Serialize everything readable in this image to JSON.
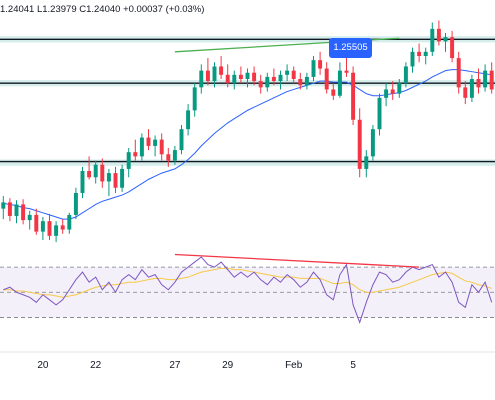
{
  "header": {
    "ohlc_text": "1.24041  L1.23979  C1.24040  +0.00037 (+0.03%)",
    "change_text": "+0.00037 (+0.03%)"
  },
  "callout": {
    "label": "1.25505"
  },
  "colors": {
    "up": "#089981",
    "down": "#f23645",
    "ma": "#2962ff",
    "rsi": "#7e57c2",
    "rsi_ma": "#f7c948",
    "level": "#131722",
    "zone": "#b2dfdb",
    "trendline_up": "#4caf50",
    "trendline_div": "#f23645"
  },
  "chart_data": [
    {
      "type": "candlestick",
      "x_ticks": [
        "20",
        "22",
        "27",
        "29",
        "Feb",
        "5"
      ],
      "candles": [
        [
          1.239,
          1.2402,
          1.238,
          1.2396
        ],
        [
          1.2396,
          1.24,
          1.2378,
          1.2383
        ],
        [
          1.2383,
          1.2398,
          1.2376,
          1.2394
        ],
        [
          1.2394,
          1.2399,
          1.2375,
          1.2379
        ],
        [
          1.2379,
          1.2388,
          1.237,
          1.2384
        ],
        [
          1.2384,
          1.239,
          1.2365,
          1.2368
        ],
        [
          1.2368,
          1.2382,
          1.236,
          1.2378
        ],
        [
          1.2378,
          1.2385,
          1.236,
          1.2364
        ],
        [
          1.2364,
          1.2378,
          1.2358,
          1.2374
        ],
        [
          1.2374,
          1.238,
          1.2366,
          1.237
        ],
        [
          1.237,
          1.2386,
          1.2366,
          1.2384
        ],
        [
          1.2384,
          1.241,
          1.238,
          1.2405
        ],
        [
          1.2405,
          1.243,
          1.24,
          1.2426
        ],
        [
          1.2426,
          1.244,
          1.2418,
          1.242
        ],
        [
          1.242,
          1.2436,
          1.2414,
          1.2432
        ],
        [
          1.2432,
          1.2438,
          1.241,
          1.2416
        ],
        [
          1.2416,
          1.2428,
          1.2402,
          1.2424
        ],
        [
          1.2424,
          1.243,
          1.2405,
          1.241
        ],
        [
          1.241,
          1.2432,
          1.2406,
          1.2428
        ],
        [
          1.2428,
          1.2448,
          1.242,
          1.2444
        ],
        [
          1.2444,
          1.2456,
          1.2436,
          1.244
        ],
        [
          1.244,
          1.2462,
          1.2436,
          1.2458
        ],
        [
          1.2458,
          1.2466,
          1.2446,
          1.245
        ],
        [
          1.245,
          1.246,
          1.244,
          1.2456
        ],
        [
          1.2456,
          1.2462,
          1.2436,
          1.2442
        ],
        [
          1.2442,
          1.2448,
          1.243,
          1.2436
        ],
        [
          1.2436,
          1.245,
          1.2432,
          1.2446
        ],
        [
          1.2446,
          1.247,
          1.2442,
          1.2466
        ],
        [
          1.2466,
          1.249,
          1.246,
          1.2484
        ],
        [
          1.2484,
          1.251,
          1.2478,
          1.2506
        ],
        [
          1.2506,
          1.2528,
          1.25,
          1.2522
        ],
        [
          1.2522,
          1.2534,
          1.2508,
          1.2512
        ],
        [
          1.2512,
          1.253,
          1.2506,
          1.2526
        ],
        [
          1.2526,
          1.2536,
          1.2514,
          1.2518
        ],
        [
          1.2518,
          1.2528,
          1.2506,
          1.251
        ],
        [
          1.251,
          1.2522,
          1.2504,
          1.2518
        ],
        [
          1.2518,
          1.2526,
          1.251,
          1.2514
        ],
        [
          1.2514,
          1.2524,
          1.2506,
          1.252
        ],
        [
          1.252,
          1.2526,
          1.2508,
          1.2512
        ],
        [
          1.2512,
          1.2518,
          1.25,
          1.2506
        ],
        [
          1.2506,
          1.252,
          1.2502,
          1.2516
        ],
        [
          1.2516,
          1.2524,
          1.2508,
          1.2512
        ],
        [
          1.2512,
          1.2522,
          1.2504,
          1.2518
        ],
        [
          1.2518,
          1.2528,
          1.2512,
          1.2522
        ],
        [
          1.2522,
          1.2526,
          1.251,
          1.2514
        ],
        [
          1.2514,
          1.252,
          1.2504,
          1.2508
        ],
        [
          1.2508,
          1.252,
          1.2504,
          1.2516
        ],
        [
          1.2516,
          1.2536,
          1.2512,
          1.2532
        ],
        [
          1.2532,
          1.254,
          1.2518,
          1.2524
        ],
        [
          1.2524,
          1.253,
          1.25,
          1.2504
        ],
        [
          1.2504,
          1.251,
          1.2494,
          1.2498
        ],
        [
          1.2498,
          1.253,
          1.2496,
          1.2522
        ],
        [
          1.2522,
          1.2551,
          1.2516,
          1.252
        ],
        [
          1.252,
          1.2526,
          1.247,
          1.2475
        ],
        [
          1.2475,
          1.2486,
          1.242,
          1.2428
        ],
        [
          1.2428,
          1.2446,
          1.242,
          1.244
        ],
        [
          1.244,
          1.247,
          1.2436,
          1.2466
        ],
        [
          1.2466,
          1.25,
          1.246,
          1.2496
        ],
        [
          1.2496,
          1.251,
          1.2488,
          1.2504
        ],
        [
          1.2504,
          1.2512,
          1.2494,
          1.25
        ],
        [
          1.25,
          1.2514,
          1.2496,
          1.251
        ],
        [
          1.251,
          1.253,
          1.2506,
          1.2526
        ],
        [
          1.2526,
          1.2544,
          1.252,
          1.254
        ],
        [
          1.254,
          1.2548,
          1.253,
          1.2536
        ],
        [
          1.2536,
          1.2544,
          1.2528,
          1.254
        ],
        [
          1.254,
          1.2568,
          1.2536,
          1.2562
        ],
        [
          1.2562,
          1.257,
          1.2546,
          1.255
        ],
        [
          1.255,
          1.2558,
          1.254,
          1.2554
        ],
        [
          1.2554,
          1.256,
          1.253,
          1.2534
        ],
        [
          1.2534,
          1.254,
          1.25,
          1.2506
        ],
        [
          1.2506,
          1.2512,
          1.249,
          1.2496
        ],
        [
          1.2496,
          1.2518,
          1.2492,
          1.2514
        ],
        [
          1.2514,
          1.2524,
          1.25,
          1.2506
        ],
        [
          1.2506,
          1.2528,
          1.2502,
          1.2522
        ],
        [
          1.2522,
          1.253,
          1.25,
          1.2504
        ]
      ],
      "moving_average": [
        1.2395,
        1.2394,
        1.2393,
        1.2391,
        1.239,
        1.2388,
        1.2386,
        1.2384,
        1.2382,
        1.238,
        1.238,
        1.2382,
        1.2386,
        1.239,
        1.2394,
        1.2397,
        1.2399,
        1.2401,
        1.2403,
        1.2406,
        1.241,
        1.2414,
        1.2418,
        1.2421,
        1.2424,
        1.2426,
        1.2428,
        1.2432,
        1.2437,
        1.2443,
        1.245,
        1.2456,
        1.2462,
        1.2467,
        1.2472,
        1.2476,
        1.248,
        1.2484,
        1.2487,
        1.249,
        1.2493,
        1.2496,
        1.2499,
        1.2502,
        1.2504,
        1.2506,
        1.2508,
        1.251,
        1.2512,
        1.2512,
        1.2511,
        1.2511,
        1.2511,
        1.2508,
        1.2504,
        1.25,
        1.2498,
        1.2498,
        1.2499,
        1.25,
        1.2501,
        1.2503,
        1.2506,
        1.2509,
        1.2512,
        1.2516,
        1.2519,
        1.2522,
        1.2523,
        1.2523,
        1.2522,
        1.2521,
        1.252,
        1.2519,
        1.2518
      ],
      "levels": [
        1.2552,
        1.251,
        1.2435
      ],
      "zones": [
        [
          1.2549,
          1.2555
        ],
        [
          1.2507,
          1.2513
        ],
        [
          1.2431,
          1.2437
        ]
      ],
      "trendline": [
        [
          26,
          1.254
        ],
        [
          60,
          1.2553
        ]
      ],
      "price_range": [
        1.236,
        1.258
      ]
    },
    {
      "type": "line",
      "indicator": "RSI",
      "rsi": [
        52,
        54,
        50,
        48,
        46,
        42,
        48,
        44,
        40,
        44,
        52,
        60,
        66,
        58,
        62,
        52,
        58,
        50,
        60,
        64,
        60,
        68,
        62,
        64,
        56,
        52,
        58,
        66,
        70,
        74,
        78,
        72,
        70,
        74,
        68,
        62,
        66,
        62,
        66,
        60,
        56,
        62,
        58,
        64,
        60,
        54,
        58,
        66,
        60,
        48,
        44,
        64,
        72,
        40,
        26,
        42,
        56,
        66,
        64,
        58,
        60,
        66,
        70,
        68,
        70,
        72,
        62,
        66,
        58,
        42,
        38,
        56,
        50,
        58,
        42
      ],
      "rsi_ma": [
        52,
        52,
        51,
        51,
        50,
        49,
        48,
        48,
        47,
        46,
        47,
        48,
        50,
        52,
        54,
        55,
        56,
        56,
        57,
        58,
        58,
        59,
        60,
        61,
        61,
        60,
        60,
        61,
        62,
        64,
        66,
        67,
        68,
        69,
        69,
        68,
        68,
        67,
        66,
        65,
        64,
        63,
        62,
        62,
        62,
        61,
        61,
        61,
        61,
        59,
        57,
        57,
        58,
        56,
        52,
        50,
        50,
        51,
        52,
        53,
        54,
        56,
        58,
        60,
        62,
        64,
        65,
        66,
        65,
        62,
        59,
        58,
        56,
        55,
        53
      ],
      "bands": [
        30,
        50,
        70
      ],
      "divergence": [
        [
          26,
          80
        ],
        [
          63,
          70
        ]
      ],
      "range": [
        20,
        82
      ]
    }
  ]
}
